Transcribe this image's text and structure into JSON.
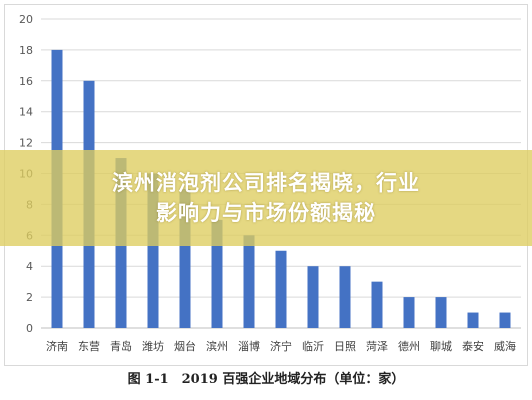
{
  "banner": {
    "line1": "滨州消泡剂公司排名揭晓，行业",
    "line2": "影响力与市场份额揭秘"
  },
  "caption": "图 1-1　2019 百强企业地域分布（单位：家）",
  "colors": {
    "bar": "#4472c4",
    "banner": "#decd5f",
    "grid": "#d9d9d9"
  },
  "chart_data": {
    "type": "bar",
    "categories": [
      "济南",
      "东营",
      "青岛",
      "潍坊",
      "烟台",
      "滨州",
      "淄博",
      "济宁",
      "临沂",
      "日照",
      "菏泽",
      "德州",
      "聊城",
      "泰安",
      "威海"
    ],
    "values": [
      18,
      16,
      11,
      10,
      9,
      7,
      6,
      5,
      4,
      4,
      3,
      2,
      2,
      1,
      1
    ],
    "yticks": [
      0,
      2,
      4,
      6,
      8,
      10,
      12,
      14,
      16,
      18,
      20
    ],
    "ylim": [
      0,
      20
    ],
    "grid": true,
    "legend": "none"
  }
}
